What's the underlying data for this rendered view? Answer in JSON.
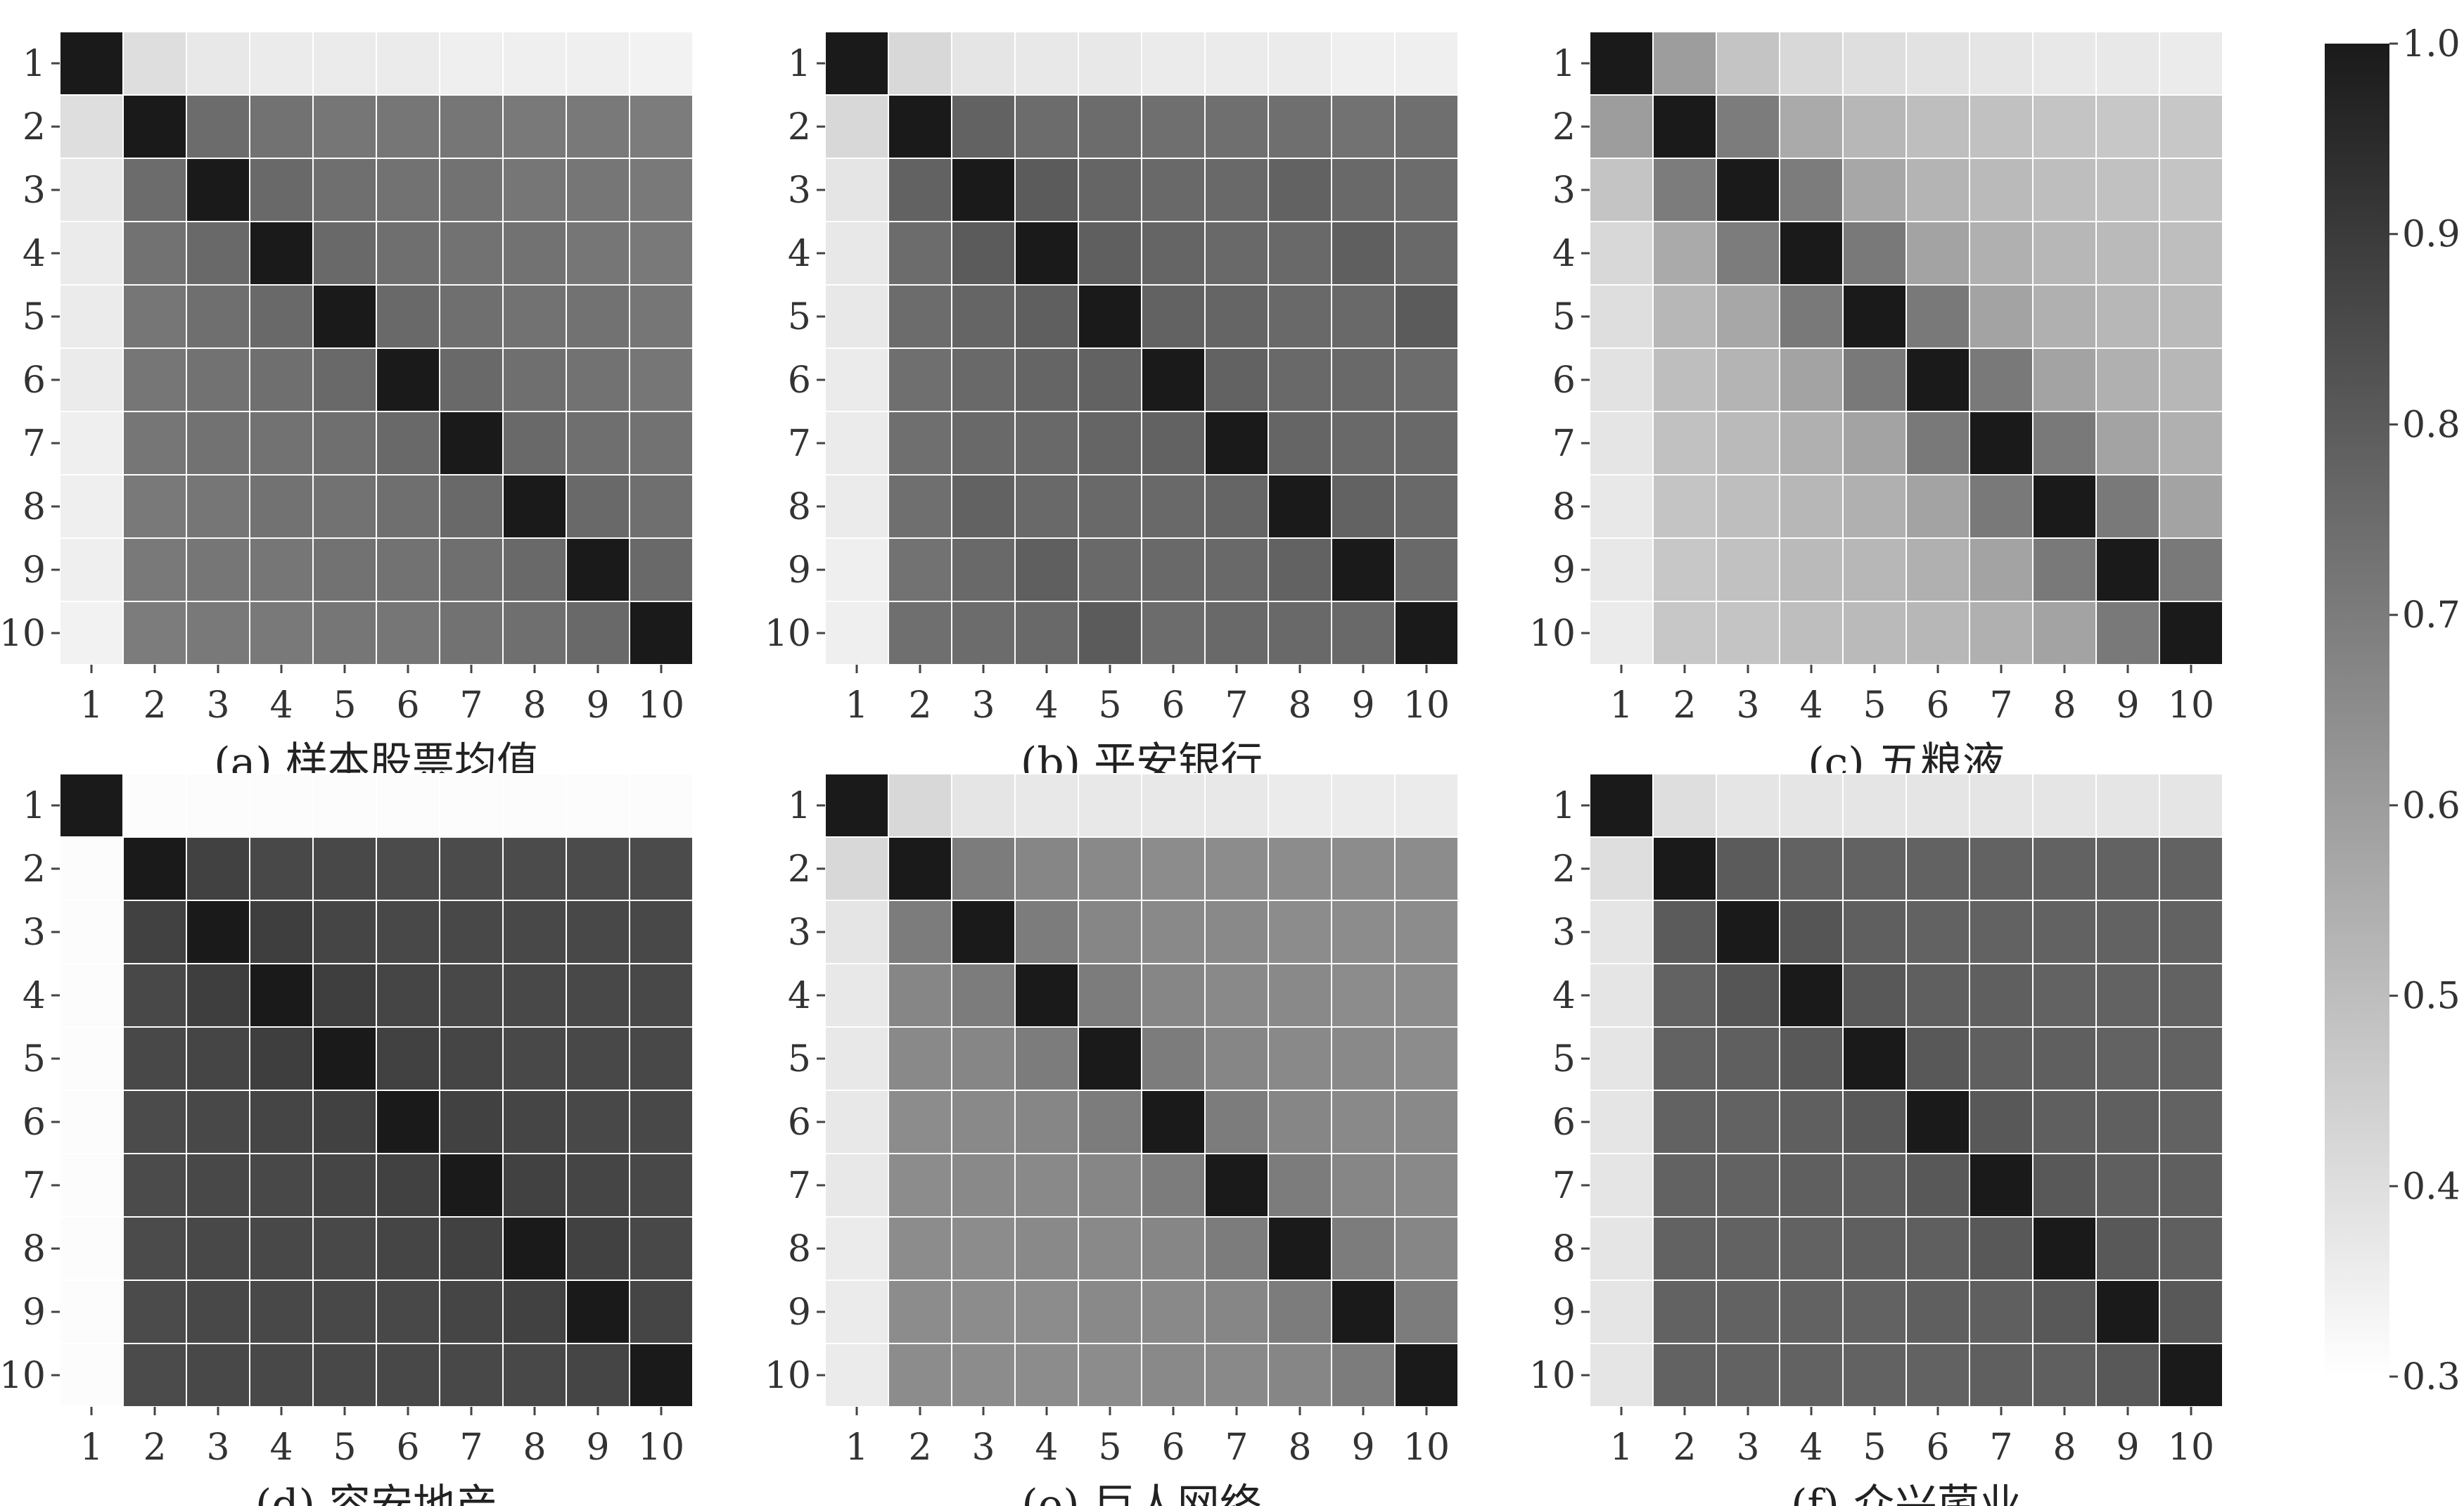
{
  "chart_data": [
    {
      "type": "heatmap",
      "caption": "(a) 样本股票均值",
      "categories": [
        "1",
        "2",
        "3",
        "4",
        "5",
        "6",
        "7",
        "8",
        "9",
        "10"
      ],
      "values": [
        [
          1.0,
          0.4,
          0.37,
          0.36,
          0.36,
          0.36,
          0.35,
          0.35,
          0.35,
          0.34
        ],
        [
          0.4,
          1.0,
          0.75,
          0.73,
          0.72,
          0.72,
          0.72,
          0.71,
          0.71,
          0.7
        ],
        [
          0.37,
          0.75,
          1.0,
          0.76,
          0.74,
          0.73,
          0.73,
          0.72,
          0.72,
          0.71
        ],
        [
          0.36,
          0.73,
          0.76,
          1.0,
          0.76,
          0.74,
          0.73,
          0.73,
          0.72,
          0.71
        ],
        [
          0.36,
          0.72,
          0.74,
          0.76,
          1.0,
          0.76,
          0.74,
          0.73,
          0.73,
          0.72
        ],
        [
          0.36,
          0.72,
          0.73,
          0.74,
          0.76,
          1.0,
          0.76,
          0.74,
          0.73,
          0.72
        ],
        [
          0.35,
          0.72,
          0.73,
          0.73,
          0.74,
          0.76,
          1.0,
          0.76,
          0.74,
          0.73
        ],
        [
          0.35,
          0.71,
          0.72,
          0.73,
          0.73,
          0.74,
          0.76,
          1.0,
          0.76,
          0.74
        ],
        [
          0.35,
          0.71,
          0.72,
          0.72,
          0.73,
          0.73,
          0.74,
          0.76,
          1.0,
          0.76
        ],
        [
          0.34,
          0.7,
          0.71,
          0.71,
          0.72,
          0.72,
          0.73,
          0.74,
          0.76,
          1.0
        ]
      ]
    },
    {
      "type": "heatmap",
      "caption": "(b) 平安银行",
      "categories": [
        "1",
        "2",
        "3",
        "4",
        "5",
        "6",
        "7",
        "8",
        "9",
        "10"
      ],
      "values": [
        [
          1.0,
          0.42,
          0.38,
          0.37,
          0.37,
          0.36,
          0.36,
          0.36,
          0.35,
          0.35
        ],
        [
          0.42,
          1.0,
          0.78,
          0.75,
          0.75,
          0.74,
          0.74,
          0.74,
          0.73,
          0.74
        ],
        [
          0.38,
          0.78,
          1.0,
          0.8,
          0.77,
          0.76,
          0.76,
          0.78,
          0.76,
          0.75
        ],
        [
          0.37,
          0.75,
          0.8,
          1.0,
          0.79,
          0.77,
          0.76,
          0.76,
          0.79,
          0.76
        ],
        [
          0.37,
          0.75,
          0.77,
          0.79,
          1.0,
          0.78,
          0.77,
          0.76,
          0.76,
          0.8
        ],
        [
          0.36,
          0.74,
          0.76,
          0.77,
          0.78,
          1.0,
          0.78,
          0.76,
          0.76,
          0.75
        ],
        [
          0.36,
          0.74,
          0.76,
          0.76,
          0.77,
          0.78,
          1.0,
          0.77,
          0.76,
          0.76
        ],
        [
          0.36,
          0.74,
          0.78,
          0.76,
          0.76,
          0.76,
          0.77,
          1.0,
          0.78,
          0.76
        ],
        [
          0.35,
          0.73,
          0.76,
          0.79,
          0.76,
          0.76,
          0.76,
          0.78,
          1.0,
          0.76
        ],
        [
          0.35,
          0.74,
          0.75,
          0.76,
          0.8,
          0.75,
          0.76,
          0.76,
          0.76,
          1.0
        ]
      ]
    },
    {
      "type": "heatmap",
      "caption": "(c) 五粮液",
      "categories": [
        "1",
        "2",
        "3",
        "4",
        "5",
        "6",
        "7",
        "8",
        "9",
        "10"
      ],
      "values": [
        [
          1.0,
          0.6,
          0.48,
          0.42,
          0.4,
          0.39,
          0.38,
          0.37,
          0.37,
          0.36
        ],
        [
          0.6,
          1.0,
          0.7,
          0.56,
          0.52,
          0.5,
          0.49,
          0.48,
          0.47,
          0.47
        ],
        [
          0.48,
          0.7,
          1.0,
          0.7,
          0.57,
          0.53,
          0.51,
          0.5,
          0.49,
          0.48
        ],
        [
          0.42,
          0.56,
          0.7,
          1.0,
          0.71,
          0.58,
          0.54,
          0.52,
          0.51,
          0.5
        ],
        [
          0.4,
          0.52,
          0.57,
          0.71,
          1.0,
          0.71,
          0.58,
          0.54,
          0.52,
          0.51
        ],
        [
          0.39,
          0.5,
          0.53,
          0.58,
          0.71,
          1.0,
          0.71,
          0.58,
          0.54,
          0.52
        ],
        [
          0.38,
          0.49,
          0.51,
          0.54,
          0.58,
          0.71,
          1.0,
          0.71,
          0.58,
          0.54
        ],
        [
          0.37,
          0.48,
          0.5,
          0.52,
          0.54,
          0.58,
          0.71,
          1.0,
          0.71,
          0.58
        ],
        [
          0.37,
          0.47,
          0.49,
          0.51,
          0.52,
          0.54,
          0.58,
          0.71,
          1.0,
          0.71
        ],
        [
          0.36,
          0.47,
          0.48,
          0.5,
          0.51,
          0.52,
          0.54,
          0.58,
          0.71,
          1.0
        ]
      ]
    },
    {
      "type": "heatmap",
      "caption": "(d) 容安地产",
      "categories": [
        "1",
        "2",
        "3",
        "4",
        "5",
        "6",
        "7",
        "8",
        "9",
        "10"
      ],
      "values": [
        [
          1.0,
          0.31,
          0.31,
          0.31,
          0.31,
          0.31,
          0.31,
          0.31,
          0.31,
          0.31
        ],
        [
          0.31,
          1.0,
          0.88,
          0.86,
          0.86,
          0.85,
          0.85,
          0.85,
          0.85,
          0.85
        ],
        [
          0.31,
          0.88,
          1.0,
          0.89,
          0.87,
          0.86,
          0.86,
          0.86,
          0.86,
          0.86
        ],
        [
          0.31,
          0.86,
          0.89,
          1.0,
          0.89,
          0.87,
          0.86,
          0.86,
          0.86,
          0.86
        ],
        [
          0.31,
          0.86,
          0.87,
          0.89,
          1.0,
          0.88,
          0.87,
          0.86,
          0.86,
          0.86
        ],
        [
          0.31,
          0.85,
          0.86,
          0.87,
          0.88,
          1.0,
          0.88,
          0.87,
          0.86,
          0.86
        ],
        [
          0.31,
          0.85,
          0.86,
          0.86,
          0.87,
          0.88,
          1.0,
          0.88,
          0.87,
          0.86
        ],
        [
          0.31,
          0.85,
          0.86,
          0.86,
          0.86,
          0.87,
          0.88,
          1.0,
          0.88,
          0.86
        ],
        [
          0.31,
          0.85,
          0.86,
          0.86,
          0.86,
          0.86,
          0.87,
          0.88,
          1.0,
          0.87
        ],
        [
          0.31,
          0.85,
          0.86,
          0.86,
          0.86,
          0.86,
          0.86,
          0.86,
          0.87,
          1.0
        ]
      ]
    },
    {
      "type": "heatmap",
      "caption": "(e) 巨人网络",
      "categories": [
        "1",
        "2",
        "3",
        "4",
        "5",
        "6",
        "7",
        "8",
        "9",
        "10"
      ],
      "values": [
        [
          1.0,
          0.42,
          0.38,
          0.37,
          0.37,
          0.37,
          0.37,
          0.36,
          0.36,
          0.36
        ],
        [
          0.42,
          1.0,
          0.7,
          0.67,
          0.66,
          0.65,
          0.65,
          0.65,
          0.65,
          0.65
        ],
        [
          0.38,
          0.7,
          1.0,
          0.7,
          0.67,
          0.66,
          0.66,
          0.65,
          0.65,
          0.65
        ],
        [
          0.37,
          0.67,
          0.7,
          1.0,
          0.7,
          0.67,
          0.66,
          0.66,
          0.65,
          0.65
        ],
        [
          0.37,
          0.66,
          0.67,
          0.7,
          1.0,
          0.7,
          0.67,
          0.66,
          0.66,
          0.65
        ],
        [
          0.37,
          0.65,
          0.66,
          0.67,
          0.7,
          1.0,
          0.7,
          0.67,
          0.66,
          0.66
        ],
        [
          0.37,
          0.65,
          0.66,
          0.66,
          0.67,
          0.7,
          1.0,
          0.7,
          0.67,
          0.66
        ],
        [
          0.36,
          0.65,
          0.65,
          0.66,
          0.66,
          0.67,
          0.7,
          1.0,
          0.7,
          0.67
        ],
        [
          0.36,
          0.65,
          0.65,
          0.65,
          0.66,
          0.66,
          0.67,
          0.7,
          1.0,
          0.7
        ],
        [
          0.36,
          0.65,
          0.65,
          0.65,
          0.65,
          0.66,
          0.66,
          0.67,
          0.7,
          1.0
        ]
      ]
    },
    {
      "type": "heatmap",
      "caption": "(f) 众兴菌业",
      "categories": [
        "1",
        "2",
        "3",
        "4",
        "5",
        "6",
        "7",
        "8",
        "9",
        "10"
      ],
      "values": [
        [
          1.0,
          0.4,
          0.38,
          0.38,
          0.38,
          0.38,
          0.38,
          0.38,
          0.38,
          0.38
        ],
        [
          0.4,
          1.0,
          0.8,
          0.78,
          0.78,
          0.78,
          0.78,
          0.78,
          0.78,
          0.78
        ],
        [
          0.38,
          0.8,
          1.0,
          0.82,
          0.79,
          0.78,
          0.78,
          0.78,
          0.78,
          0.78
        ],
        [
          0.38,
          0.78,
          0.82,
          1.0,
          0.81,
          0.79,
          0.79,
          0.78,
          0.78,
          0.78
        ],
        [
          0.38,
          0.78,
          0.79,
          0.81,
          1.0,
          0.81,
          0.79,
          0.79,
          0.78,
          0.78
        ],
        [
          0.38,
          0.78,
          0.78,
          0.79,
          0.81,
          1.0,
          0.81,
          0.79,
          0.79,
          0.78
        ],
        [
          0.38,
          0.78,
          0.78,
          0.79,
          0.79,
          0.81,
          1.0,
          0.81,
          0.79,
          0.79
        ],
        [
          0.38,
          0.78,
          0.78,
          0.78,
          0.79,
          0.79,
          0.81,
          1.0,
          0.81,
          0.79
        ],
        [
          0.38,
          0.78,
          0.78,
          0.78,
          0.78,
          0.79,
          0.79,
          0.81,
          1.0,
          0.81
        ],
        [
          0.38,
          0.78,
          0.78,
          0.78,
          0.78,
          0.78,
          0.79,
          0.79,
          0.81,
          1.0
        ]
      ]
    }
  ],
  "colorbar": {
    "min": 0.3,
    "max": 1.0,
    "ticks": [
      "1.0",
      "0.9",
      "0.8",
      "0.7",
      "0.6",
      "0.5",
      "0.4",
      "0.3"
    ],
    "color_low": "#ffffff",
    "color_high": "#1a1a1a"
  }
}
